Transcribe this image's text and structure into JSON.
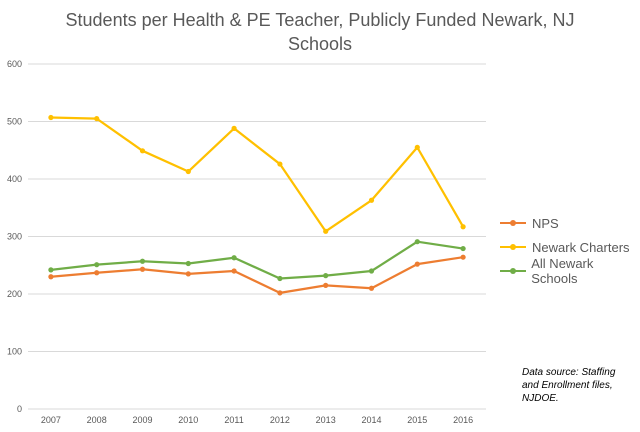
{
  "chart_data": {
    "type": "line",
    "title": "Students per Health & PE Teacher, Publicly Funded Newark, NJ Schools",
    "xlabel": "",
    "ylabel": "",
    "categories": [
      "2007",
      "2008",
      "2009",
      "2010",
      "2011",
      "2012",
      "2013",
      "2014",
      "2015",
      "2016"
    ],
    "ylim": [
      0,
      600
    ],
    "yticks": [
      0,
      100,
      200,
      300,
      400,
      500,
      600
    ],
    "grid": true,
    "legend_position": "right",
    "series": [
      {
        "name": "NPS",
        "color": "#ED7D31",
        "values": [
          230,
          237,
          243,
          235,
          240,
          202,
          215,
          210,
          252,
          264
        ]
      },
      {
        "name": "Newark Charters",
        "color": "#FFC000",
        "values": [
          507,
          505,
          449,
          413,
          488,
          426,
          309,
          363,
          455,
          317
        ]
      },
      {
        "name": "All Newark Schools",
        "color": "#70AD47",
        "values": [
          242,
          251,
          257,
          253,
          263,
          227,
          232,
          240,
          291,
          279
        ]
      }
    ],
    "annotation": "Data source: Staffing and Enrollment files, NJDOE."
  }
}
